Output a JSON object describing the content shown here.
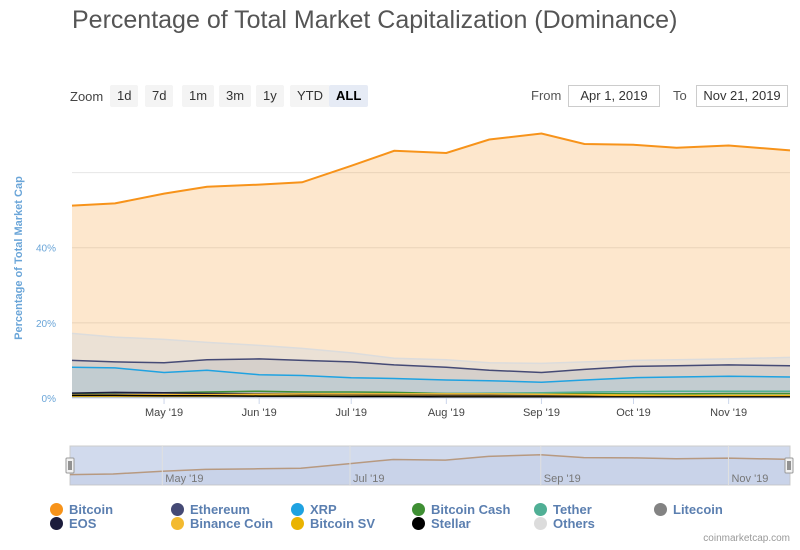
{
  "zoom": {
    "label": "Zoom",
    "buttons": [
      {
        "label": "1d"
      },
      {
        "label": "7d"
      },
      {
        "label": "1m"
      },
      {
        "label": "3m"
      },
      {
        "label": "1y"
      },
      {
        "label": "YTD"
      },
      {
        "label": "ALL",
        "active": true
      }
    ]
  },
  "range": {
    "from_label": "From",
    "from_value": "Apr 1, 2019",
    "to_label": "To",
    "to_value": "Nov 21, 2019"
  },
  "credits": "coinmarketcap.com",
  "chart_data": {
    "type": "area",
    "title": "Percentage of Total Market Capitalization (Dominance)",
    "ylabel": "Percentage of Total Market Cap",
    "xlabel": "",
    "ylim": [
      0,
      70
    ],
    "y_ticks": [
      "0%",
      "20%",
      "40%"
    ],
    "y_tick_values": [
      0,
      20,
      40
    ],
    "y_gridlines": [
      0,
      20,
      40,
      60
    ],
    "x_ticks": [
      "May '19",
      "Jun '19",
      "Jul '19",
      "Aug '19",
      "Sep '19",
      "Oct '19",
      "Nov '19"
    ],
    "x_tick_dates": [
      "2019-05-01",
      "2019-06-01",
      "2019-07-01",
      "2019-08-01",
      "2019-09-01",
      "2019-10-01",
      "2019-11-01"
    ],
    "x_range": [
      "2019-04-01",
      "2019-11-21"
    ],
    "grid": true,
    "legend_position": "bottom",
    "navigator": {
      "x_ticks": [
        "May '19",
        "Jul '19",
        "Sep '19",
        "Nov '19"
      ]
    },
    "x": [
      "2019-04-01",
      "2019-04-15",
      "2019-05-01",
      "2019-05-15",
      "2019-06-01",
      "2019-06-15",
      "2019-07-01",
      "2019-07-15",
      "2019-08-01",
      "2019-08-15",
      "2019-09-01",
      "2019-09-15",
      "2019-10-01",
      "2019-10-15",
      "2019-11-01",
      "2019-11-21"
    ],
    "series": [
      {
        "name": "Bitcoin",
        "color": "#f7931a",
        "values": [
          51.2,
          51.8,
          54.4,
          56.2,
          56.8,
          57.4,
          61.8,
          65.8,
          65.2,
          68.8,
          70.4,
          67.6,
          67.4,
          66.6,
          67.2,
          65.9
        ]
      },
      {
        "name": "Ethereum",
        "color": "#454a75",
        "values": [
          10.0,
          9.6,
          9.4,
          10.2,
          10.4,
          10.0,
          9.6,
          8.8,
          8.2,
          7.4,
          6.8,
          7.6,
          8.4,
          8.6,
          8.8,
          8.6
        ]
      },
      {
        "name": "XRP",
        "color": "#1fa2e1",
        "values": [
          8.2,
          8.0,
          6.8,
          7.4,
          6.2,
          6.0,
          5.4,
          5.2,
          4.8,
          4.6,
          4.2,
          4.8,
          5.4,
          5.6,
          5.8,
          5.6
        ]
      },
      {
        "name": "Bitcoin Cash",
        "color": "#3f8f34",
        "values": [
          1.2,
          1.3,
          1.4,
          1.6,
          1.8,
          1.6,
          1.6,
          1.5,
          1.2,
          1.2,
          1.2,
          1.2,
          1.1,
          1.1,
          1.2,
          1.2
        ]
      },
      {
        "name": "Tether",
        "color": "#50af95",
        "values": [
          0.6,
          0.7,
          0.8,
          0.9,
          0.9,
          0.9,
          1.0,
          1.1,
          1.2,
          1.3,
          1.4,
          1.6,
          1.7,
          1.8,
          1.8,
          1.8
        ]
      },
      {
        "name": "Litecoin",
        "color": "#838383",
        "values": [
          0.8,
          1.0,
          1.2,
          1.2,
          1.2,
          1.2,
          1.1,
          1.0,
          0.9,
          0.8,
          0.7,
          0.7,
          0.6,
          0.6,
          0.6,
          0.6
        ]
      },
      {
        "name": "EOS",
        "color": "#1c1c3c",
        "values": [
          1.3,
          1.5,
          1.4,
          1.2,
          1.1,
          1.0,
          0.9,
          0.8,
          0.7,
          0.7,
          0.6,
          0.6,
          0.6,
          0.6,
          0.6,
          0.5
        ]
      },
      {
        "name": "Binance Coin",
        "color": "#f3ba2f",
        "values": [
          0.8,
          0.8,
          0.9,
          0.9,
          1.0,
          1.1,
          1.1,
          1.1,
          1.1,
          1.1,
          1.0,
          0.9,
          0.8,
          0.7,
          0.7,
          0.7
        ]
      },
      {
        "name": "Bitcoin SV",
        "color": "#eab300",
        "values": [
          0.5,
          0.5,
          0.5,
          0.5,
          0.6,
          0.6,
          0.5,
          0.5,
          0.4,
          0.4,
          0.4,
          0.4,
          0.5,
          0.5,
          0.5,
          0.5
        ]
      },
      {
        "name": "Stellar",
        "color": "#000000",
        "values": [
          0.7,
          0.7,
          0.6,
          0.6,
          0.5,
          0.5,
          0.4,
          0.4,
          0.3,
          0.3,
          0.3,
          0.3,
          0.3,
          0.3,
          0.3,
          0.3
        ]
      },
      {
        "name": "Others",
        "color": "#dcdcdc",
        "values": [
          17.2,
          16.2,
          15.6,
          14.8,
          14.0,
          13.2,
          12.0,
          10.6,
          10.2,
          9.4,
          9.2,
          9.6,
          10.0,
          10.2,
          10.4,
          10.8
        ]
      }
    ]
  }
}
